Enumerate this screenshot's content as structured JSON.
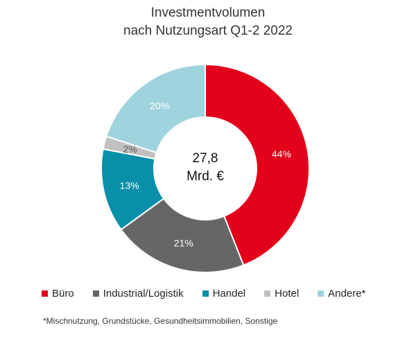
{
  "chart_data": {
    "type": "pie",
    "title_line1": "Investmentvolumen",
    "title_line2": "nach Nutzungsart Q1-2 2022",
    "center_value": "27,8",
    "center_unit": "Mrd. €",
    "categories": [
      "Büro",
      "Industrial/Logistik",
      "Handel",
      "Hotel",
      "Andere*"
    ],
    "values": [
      44,
      21,
      13,
      2,
      20
    ],
    "value_labels": [
      "44%",
      "21%",
      "13%",
      "2%",
      "20%"
    ],
    "colors": [
      "#e2001a",
      "#666666",
      "#0a8fa8",
      "#c0c0c0",
      "#9fd3de"
    ],
    "label_colors": [
      "#ffffff",
      "#ffffff",
      "#ffffff",
      "#555555",
      "#ffffff"
    ],
    "legend_position": "bottom"
  },
  "footnote": "*Mischnutzung, Grundstücke, Gesundheitsimmobilien, Sonstige"
}
